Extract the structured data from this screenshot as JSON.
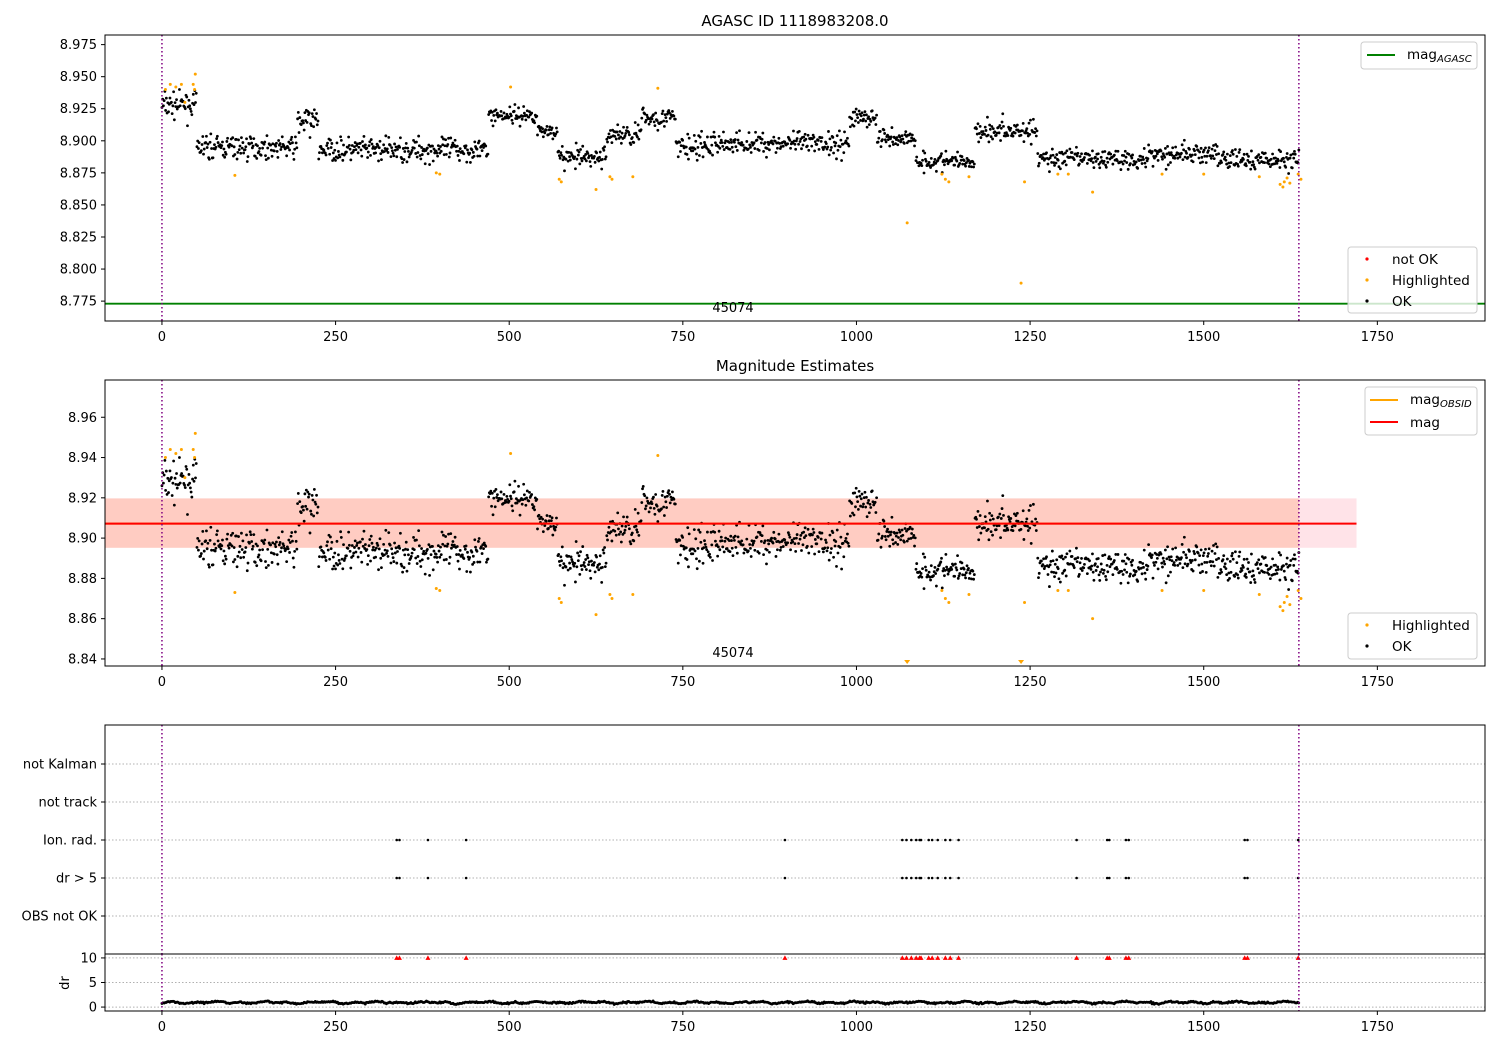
{
  "colors": {
    "ok": "#000000",
    "highlighted": "#ffa500",
    "not_ok": "#ff0000",
    "mag_agasc": "#008000",
    "mag_obsid": "#ffa500",
    "mag": "#ff0000",
    "band_fill": "#ffc0cb",
    "band_obsid_fill": "#ffa07a",
    "obs_boundary": "#800080"
  },
  "chart_data": [
    {
      "id": "agasc",
      "type": "scatter",
      "title": "AGASC ID 1118983208.0",
      "xlim": [
        -82,
        1905
      ],
      "ylim": [
        8.7595,
        8.9825
      ],
      "xticks": [
        0,
        250,
        500,
        750,
        1000,
        1250,
        1500,
        1750
      ],
      "yticks": [
        "8.775",
        "8.800",
        "8.825",
        "8.850",
        "8.875",
        "8.900",
        "8.925",
        "8.950",
        "8.975"
      ],
      "grid": false,
      "obs_boundaries": [
        0,
        1637
      ],
      "obsid_label": "45074",
      "lines": [
        {
          "name": "mag_AGASC",
          "y": 8.773,
          "x": [
            -82,
            1905
          ]
        }
      ],
      "segments_summary": [
        {
          "x_range": [
            0,
            50
          ],
          "y_center": 8.928,
          "spread": 0.008
        },
        {
          "x_range": [
            50,
            195
          ],
          "y_center": 8.895,
          "spread": 0.008
        },
        {
          "x_range": [
            195,
            225
          ],
          "y_center": 8.915,
          "spread": 0.01
        },
        {
          "x_range": [
            225,
            470
          ],
          "y_center": 8.893,
          "spread": 0.008
        },
        {
          "x_range": [
            470,
            540
          ],
          "y_center": 8.92,
          "spread": 0.006
        },
        {
          "x_range": [
            540,
            570
          ],
          "y_center": 8.908,
          "spread": 0.005
        },
        {
          "x_range": [
            570,
            640
          ],
          "y_center": 8.887,
          "spread": 0.007
        },
        {
          "x_range": [
            640,
            690
          ],
          "y_center": 8.905,
          "spread": 0.008
        },
        {
          "x_range": [
            690,
            740
          ],
          "y_center": 8.918,
          "spread": 0.007
        },
        {
          "x_range": [
            740,
            790
          ],
          "y_center": 8.895,
          "spread": 0.009
        },
        {
          "x_range": [
            790,
            990
          ],
          "y_center": 8.898,
          "spread": 0.008
        },
        {
          "x_range": [
            990,
            1030
          ],
          "y_center": 8.918,
          "spread": 0.007
        },
        {
          "x_range": [
            1030,
            1085
          ],
          "y_center": 8.902,
          "spread": 0.007
        },
        {
          "x_range": [
            1085,
            1170
          ],
          "y_center": 8.884,
          "spread": 0.006
        },
        {
          "x_range": [
            1170,
            1260
          ],
          "y_center": 8.908,
          "spread": 0.008
        },
        {
          "x_range": [
            1260,
            1420
          ],
          "y_center": 8.886,
          "spread": 0.007
        },
        {
          "x_range": [
            1420,
            1520
          ],
          "y_center": 8.89,
          "spread": 0.007
        },
        {
          "x_range": [
            1520,
            1637
          ],
          "y_center": 8.885,
          "spread": 0.007
        }
      ],
      "highlighted_points": [
        [
          5,
          8.94
        ],
        [
          12,
          8.944
        ],
        [
          20,
          8.942
        ],
        [
          28,
          8.944
        ],
        [
          33,
          8.93
        ],
        [
          45,
          8.944
        ],
        [
          47,
          8.94
        ],
        [
          48,
          8.952
        ],
        [
          105,
          8.873
        ],
        [
          395,
          8.875
        ],
        [
          400,
          8.874
        ],
        [
          502,
          8.942
        ],
        [
          572,
          8.87
        ],
        [
          575,
          8.868
        ],
        [
          625,
          8.862
        ],
        [
          645,
          8.872
        ],
        [
          648,
          8.87
        ],
        [
          678,
          8.872
        ],
        [
          714,
          8.941
        ],
        [
          1073,
          8.836
        ],
        [
          1123,
          8.874
        ],
        [
          1128,
          8.87
        ],
        [
          1133,
          8.868
        ],
        [
          1162,
          8.872
        ],
        [
          1237,
          8.789
        ],
        [
          1242,
          8.868
        ],
        [
          1290,
          8.874
        ],
        [
          1305,
          8.874
        ],
        [
          1340,
          8.86
        ],
        [
          1440,
          8.874
        ],
        [
          1500,
          8.874
        ],
        [
          1580,
          8.872
        ],
        [
          1610,
          8.866
        ],
        [
          1614,
          8.864
        ],
        [
          1616,
          8.868
        ],
        [
          1620,
          8.871
        ],
        [
          1624,
          8.867
        ],
        [
          1636,
          8.874
        ],
        [
          1640,
          8.87
        ]
      ],
      "legend_top": {
        "placement": "upper right",
        "entries": [
          "mag_AGASC"
        ]
      },
      "legend_bottom": {
        "placement": "lower right",
        "entries": [
          "not OK",
          "Highlighted",
          "OK"
        ]
      }
    },
    {
      "id": "estimates",
      "type": "scatter",
      "title": "Magnitude Estimates",
      "xlim": [
        -82,
        1905
      ],
      "ylim": [
        8.8365,
        8.9785
      ],
      "xticks": [
        0,
        250,
        500,
        750,
        1000,
        1250,
        1500,
        1750
      ],
      "yticks": [
        "8.84",
        "8.86",
        "8.88",
        "8.90",
        "8.92",
        "8.94",
        "8.96"
      ],
      "grid": false,
      "obs_boundaries": [
        0,
        1637
      ],
      "obsid_label": "45074",
      "lines": [
        {
          "name": "mag_OBSID",
          "y": 8.9072,
          "x": [
            -82,
            1637
          ]
        },
        {
          "name": "mag",
          "y": 8.9072,
          "x": [
            -82,
            1720
          ]
        }
      ],
      "bands": [
        {
          "name": "mag_band",
          "y": [
            8.8952,
            8.9197
          ],
          "x": [
            -82,
            1720
          ]
        },
        {
          "name": "mag_OBSID_band",
          "y": [
            8.8952,
            8.9197
          ],
          "x": [
            -82,
            1637
          ]
        }
      ],
      "lower_limit_markers_x": [
        1073,
        1237
      ],
      "legend_top": {
        "placement": "upper right",
        "entries": [
          "mag_OBSID",
          "mag"
        ]
      },
      "legend_bottom": {
        "placement": "lower right",
        "entries": [
          "Highlighted",
          "OK"
        ]
      }
    },
    {
      "id": "flags",
      "type": "scatter",
      "xlim": [
        -82,
        1905
      ],
      "xticks": [
        0,
        250,
        500,
        750,
        1000,
        1250,
        1500,
        1750
      ],
      "categories": [
        "not Kalman",
        "not track",
        "Ion. rad.",
        "dr > 5",
        "OBS not OK"
      ],
      "grid": "horizontal dotted",
      "obs_boundaries": [
        0,
        1637
      ],
      "flag_points": {
        "Ion. rad.": [
          338,
          342,
          383,
          438,
          897,
          1066,
          1072,
          1079,
          1086,
          1091,
          1093,
          1104,
          1109,
          1117,
          1128,
          1135,
          1147,
          1317,
          1361,
          1364,
          1388,
          1392,
          1559,
          1563,
          1636
        ],
        "dr > 5": [
          338,
          342,
          383,
          438,
          897,
          1066,
          1072,
          1079,
          1086,
          1091,
          1093,
          1104,
          1109,
          1117,
          1128,
          1135,
          1147,
          1317,
          1361,
          1364,
          1388,
          1392,
          1559,
          1563,
          1636
        ]
      }
    },
    {
      "id": "dr",
      "type": "scatter",
      "ylabel": "dr",
      "xlim": [
        -82,
        1905
      ],
      "ylim": [
        -0.8,
        10.8
      ],
      "xticks": [
        0,
        250,
        500,
        750,
        1000,
        1250,
        1500,
        1750
      ],
      "yticks": [
        "0",
        "5",
        "10"
      ],
      "grid": "horizontal dotted",
      "obs_boundaries": [
        0,
        1637
      ],
      "clipped_marker_y": 10,
      "clipped_x": [
        338,
        342,
        383,
        438,
        897,
        1066,
        1072,
        1079,
        1086,
        1091,
        1093,
        1104,
        1109,
        1117,
        1128,
        1135,
        1147,
        1317,
        1361,
        1364,
        1388,
        1392,
        1559,
        1563,
        1636
      ],
      "typical_dr": [
        0.2,
        1.6
      ]
    }
  ],
  "legend_labels": {
    "mag_agasc_base": "mag",
    "mag_agasc_sub": "AGASC",
    "mag_obsid_base": "mag",
    "mag_obsid_sub": "OBSID",
    "mag": "mag",
    "not_ok": "not OK",
    "highlighted": "Highlighted",
    "ok": "OK"
  }
}
